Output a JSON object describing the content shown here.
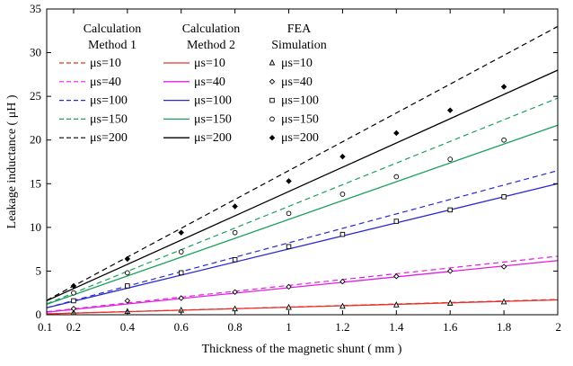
{
  "chart_data": {
    "type": "line",
    "xlabel": "Thickness of the magnetic shunt ( mm )",
    "ylabel": "Leakage inductance ( μH )",
    "xlim": [
      0.1,
      2
    ],
    "ylim": [
      0,
      35
    ],
    "xticks": [
      "0.1",
      "0.2",
      "0.4",
      "0.6",
      "0.8",
      "1",
      "1.2",
      "1.4",
      "1.6",
      "1.8",
      "2"
    ],
    "yticks": [
      "0",
      "5",
      "10",
      "15",
      "20",
      "25",
      "30",
      "35"
    ],
    "grid": false,
    "legend": {
      "placement": "top-left",
      "groups": [
        {
          "title_line1": "Calculation",
          "title_line2": "Method 1",
          "style": "dashed-line"
        },
        {
          "title_line1": "Calculation",
          "title_line2": "Method 2",
          "style": "solid-line"
        },
        {
          "title_line1": "FEA",
          "title_line2": "Simulation",
          "style": "markers"
        }
      ],
      "labels": [
        "μs=10",
        "μs=40",
        "μs=100",
        "μs=150",
        "μs=200"
      ]
    },
    "series": [
      {
        "name": "μs=10",
        "color": "#e8302a",
        "marker": "triangle",
        "method1": [
          [
            0.1,
            0.1
          ],
          [
            2,
            1.75
          ]
        ],
        "method2": [
          [
            0.1,
            0.1
          ],
          [
            2,
            1.7
          ]
        ],
        "fea": [
          [
            0.2,
            0.2
          ],
          [
            0.4,
            0.35
          ],
          [
            0.6,
            0.5
          ],
          [
            0.8,
            0.65
          ],
          [
            1.0,
            0.82
          ],
          [
            1.2,
            0.95
          ],
          [
            1.4,
            1.1
          ],
          [
            1.6,
            1.3
          ],
          [
            1.8,
            1.45
          ]
        ]
      },
      {
        "name": "μs=40",
        "color": "#e020e0",
        "marker": "diamond",
        "method1": [
          [
            0.1,
            0.35
          ],
          [
            2,
            6.7
          ]
        ],
        "method2": [
          [
            0.1,
            0.3
          ],
          [
            2,
            6.2
          ]
        ],
        "fea": [
          [
            0.2,
            0.7
          ],
          [
            0.4,
            1.6
          ],
          [
            0.6,
            1.9
          ],
          [
            0.8,
            2.6
          ],
          [
            1.0,
            3.2
          ],
          [
            1.2,
            3.8
          ],
          [
            1.4,
            4.4
          ],
          [
            1.6,
            5.0
          ],
          [
            1.8,
            5.5
          ]
        ]
      },
      {
        "name": "μs=100",
        "color": "#2a2ad0",
        "marker": "square",
        "method1": [
          [
            0.1,
            0.8
          ],
          [
            2,
            16.5
          ]
        ],
        "method2": [
          [
            0.1,
            0.8
          ],
          [
            2,
            15.0
          ]
        ],
        "fea": [
          [
            0.2,
            1.6
          ],
          [
            0.4,
            3.3
          ],
          [
            0.6,
            4.8
          ],
          [
            0.8,
            6.3
          ],
          [
            1.0,
            7.8
          ],
          [
            1.2,
            9.2
          ],
          [
            1.4,
            10.7
          ],
          [
            1.6,
            12.0
          ],
          [
            1.8,
            13.5
          ]
        ]
      },
      {
        "name": "μs=150",
        "color": "#1aa05a",
        "marker": "circle",
        "method1": [
          [
            0.1,
            1.25
          ],
          [
            2,
            24.8
          ]
        ],
        "method2": [
          [
            0.1,
            1.2
          ],
          [
            2,
            21.7
          ]
        ],
        "fea": [
          [
            0.2,
            2.5
          ],
          [
            0.4,
            4.8
          ],
          [
            0.6,
            7.2
          ],
          [
            0.8,
            9.4
          ],
          [
            1.0,
            11.6
          ],
          [
            1.2,
            13.8
          ],
          [
            1.4,
            15.8
          ],
          [
            1.6,
            17.8
          ],
          [
            1.8,
            20.0
          ]
        ]
      },
      {
        "name": "μs=200",
        "color": "#000000",
        "marker": "star",
        "method1": [
          [
            0.1,
            1.65
          ],
          [
            2,
            33.0
          ]
        ],
        "method2": [
          [
            0.1,
            1.6
          ],
          [
            2,
            28.0
          ]
        ],
        "fea": [
          [
            0.2,
            3.3
          ],
          [
            0.4,
            6.4
          ],
          [
            0.6,
            9.4
          ],
          [
            0.8,
            12.4
          ],
          [
            1.0,
            15.3
          ],
          [
            1.2,
            18.1
          ],
          [
            1.4,
            20.8
          ],
          [
            1.6,
            23.4
          ],
          [
            1.8,
            26.1
          ]
        ]
      }
    ]
  }
}
